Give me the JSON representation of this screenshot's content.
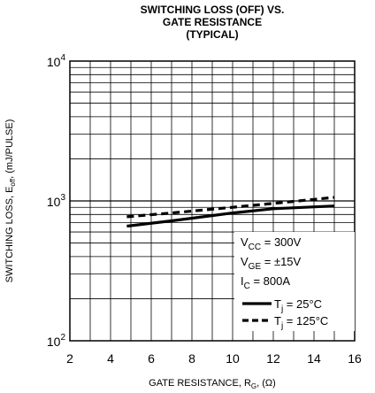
{
  "chart_data": {
    "type": "line",
    "title_lines": [
      "SWITCHING LOSS (OFF) VS.",
      "GATE RESISTANCE",
      "(TYPICAL)"
    ],
    "xlabel": {
      "main": "GATE RESISTANCE, R",
      "sub": "G",
      "tail": ", (Ω)"
    },
    "ylabel": {
      "main": "SWITCHING LOSS, E",
      "sub": "off",
      "tail": ", (mJ/PULSE)"
    },
    "xlim": [
      2,
      16
    ],
    "ylim": [
      100,
      10000
    ],
    "yscale": "log",
    "grid": true,
    "x_ticks": [
      2,
      4,
      6,
      8,
      10,
      12,
      14,
      16
    ],
    "y_ticks": [
      {
        "base": "10",
        "exp": "2",
        "value": 100
      },
      {
        "base": "10",
        "exp": "3",
        "value": 1000
      },
      {
        "base": "10",
        "exp": "4",
        "value": 10000
      }
    ],
    "series": [
      {
        "name_main": "T",
        "name_sub": "j",
        "name_tail": " = 25°C",
        "style": "solid",
        "x": [
          4.8,
          7,
          10,
          12,
          15
        ],
        "y": [
          660,
          720,
          820,
          880,
          920
        ]
      },
      {
        "name_main": "T",
        "name_sub": "j",
        "name_tail": " = 125°C",
        "style": "dashed",
        "x": [
          4.8,
          7,
          10,
          12,
          15
        ],
        "y": [
          770,
          820,
          900,
          960,
          1060
        ]
      }
    ],
    "conditions": [
      {
        "main": "V",
        "sub": "CC",
        "tail": " = 300V"
      },
      {
        "main": "V",
        "sub": "GE",
        "tail": " = ±15V"
      },
      {
        "main": "I",
        "sub": "C",
        "tail": " = 800A"
      }
    ]
  }
}
